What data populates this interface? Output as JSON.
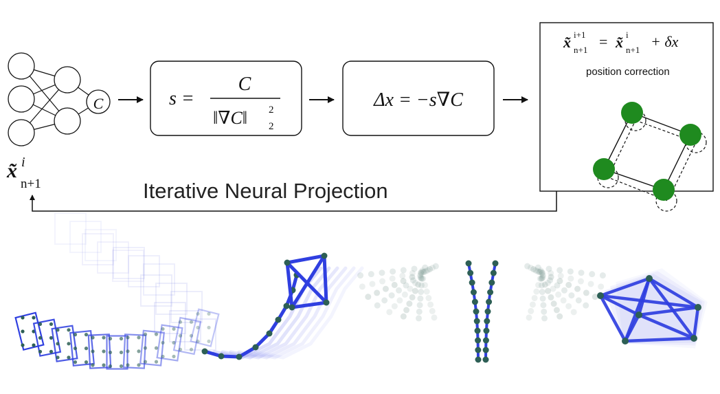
{
  "diagram": {
    "caption": "Iterative Neural Projection",
    "network": {
      "output_node_label": "C",
      "input_label_var": "x̃",
      "input_label_sup": "i",
      "input_label_sub": "n+1"
    },
    "box_scale": {
      "lhs": "s =",
      "numerator": "C",
      "denominator_norm": "‖∇C‖",
      "denominator_exp": "2",
      "denominator_sub": "2"
    },
    "box_delta": {
      "formula": "Δx = −s∇C"
    },
    "update_panel": {
      "lhs_var": "x̃",
      "lhs_sup": "i+1",
      "lhs_sub": "n+1",
      "eq": "=",
      "rhs_var": "x̃",
      "rhs_sup": "i",
      "rhs_sub": "n+1",
      "rhs_tail": "+ δx",
      "subtitle": "position correction"
    },
    "colors": {
      "node_green": "#1f8a1f",
      "constraint_blue": "#2f3fe0",
      "particle_dark": "#2d5f55",
      "line_black": "#111111"
    },
    "examples": [
      {
        "name": "bending-beam-lattice"
      },
      {
        "name": "swinging-chain-with-box"
      },
      {
        "name": "two-hanging-chains"
      },
      {
        "name": "tumbling-rigid-cluster"
      }
    ]
  }
}
